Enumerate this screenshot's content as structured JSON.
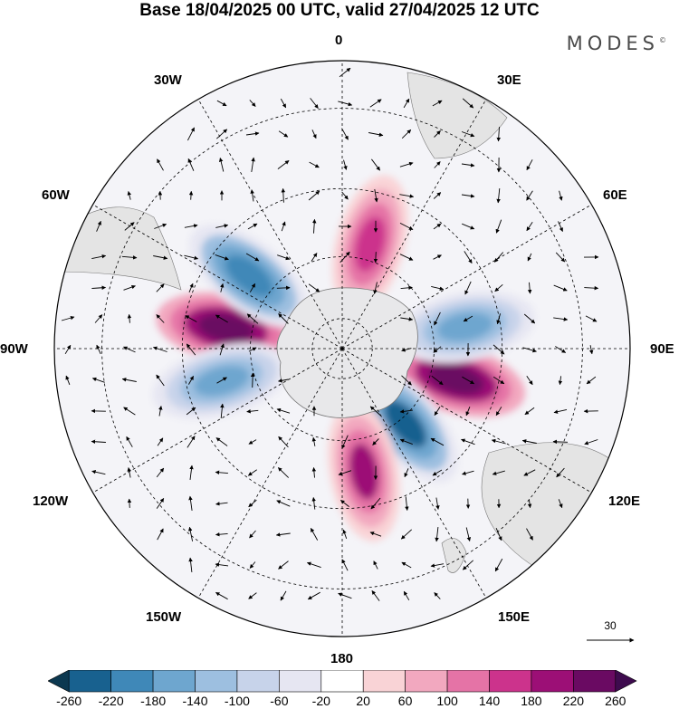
{
  "title": "Base 18/04/2025 00 UTC, valid 27/04/2025 12 UTC",
  "brand": "MODES",
  "brand_mark": "©",
  "longitude_labels": {
    "lon_0": "0",
    "lon_30e": "30E",
    "lon_60e": "60E",
    "lon_90e": "90E",
    "lon_120e": "120E",
    "lon_150e": "150E",
    "lon_180": "180",
    "lon_150w": "150W",
    "lon_120w": "120W",
    "lon_90w": "90W",
    "lon_60w": "60W",
    "lon_30w": "30W"
  },
  "reference_vector": {
    "value": "30",
    "icon": "arrow-right-icon"
  },
  "colorbar": {
    "labels": [
      "-260",
      "-220",
      "-180",
      "-140",
      "-100",
      "-60",
      "-20",
      "20",
      "60",
      "100",
      "140",
      "180",
      "220",
      "260"
    ],
    "colors": [
      "#0c3850",
      "#18618f",
      "#3f88b8",
      "#6ea6cf",
      "#9dbfe0",
      "#c7d3ea",
      "#e6e6f2",
      "#ffffff",
      "#f9d3d6",
      "#f2a8bf",
      "#e573a6",
      "#cc338c",
      "#9c0f76",
      "#6a0a62",
      "#3e0b4e"
    ]
  },
  "map_info": {
    "projection": "south polar stereographic",
    "continent_fill": "#e4e4e4",
    "features": [
      {
        "name": "anomaly-positive-90w",
        "lon": -80,
        "lat": -52,
        "value": 240
      },
      {
        "name": "anomaly-negative-60w",
        "lon": -52,
        "lat": -52,
        "value": -220
      },
      {
        "name": "anomaly-positive-90e-120e",
        "lon": 105,
        "lat": -52,
        "value": 240
      },
      {
        "name": "anomaly-negative-60e-90e",
        "lon": 80,
        "lat": -50,
        "value": -160
      },
      {
        "name": "anomaly-negative-135e",
        "lon": 140,
        "lat": -58,
        "value": -240
      },
      {
        "name": "anomaly-positive-165e",
        "lon": 170,
        "lat": -50,
        "value": 180
      },
      {
        "name": "anomaly-negative-105w",
        "lon": -105,
        "lat": -50,
        "value": -160
      },
      {
        "name": "anomaly-positive-15e",
        "lon": 15,
        "lat": -55,
        "value": 160
      }
    ]
  }
}
